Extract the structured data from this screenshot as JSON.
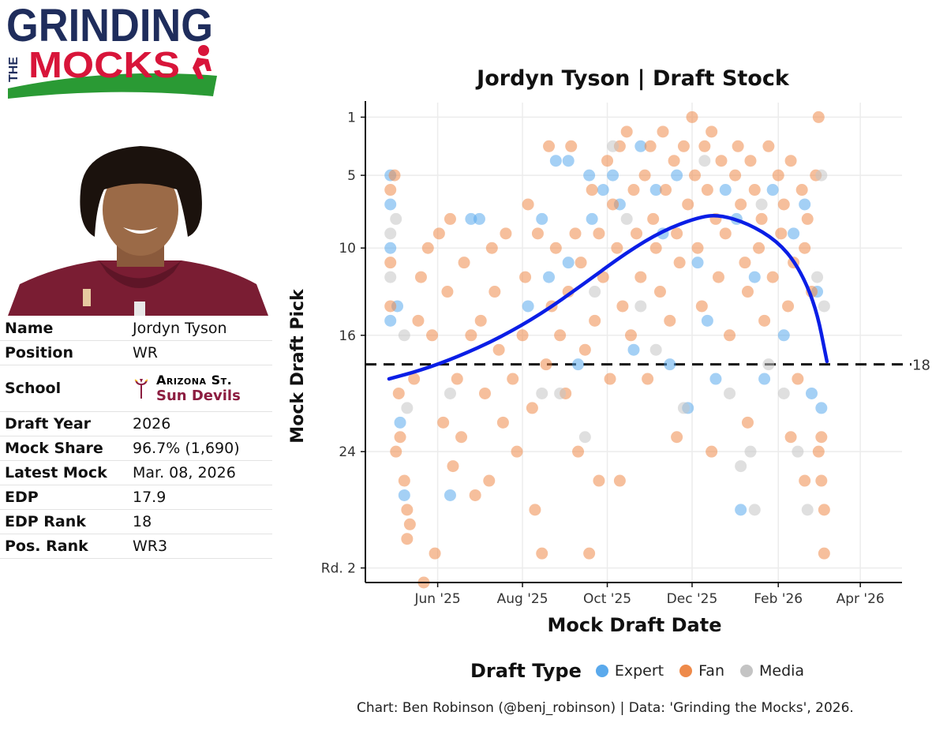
{
  "logo": {
    "line1": "GRINDING",
    "line2": "THE",
    "line3": "MOCKS"
  },
  "player_card": [
    {
      "label": "Name",
      "value": "Jordyn Tyson"
    },
    {
      "label": "Position",
      "value": "WR"
    },
    {
      "label": "School",
      "value": ""
    },
    {
      "label": "Draft Year",
      "value": "2026"
    },
    {
      "label": "Mock Share",
      "value": "96.7% (1,690)"
    },
    {
      "label": "Latest Mock",
      "value": "Mar. 08, 2026"
    },
    {
      "label": "EDP",
      "value": "17.9"
    },
    {
      "label": "EDP Rank",
      "value": "18"
    },
    {
      "label": "Pos. Rank",
      "value": "WR3"
    }
  ],
  "school": {
    "name1": "Arizona St.",
    "name2": "Sun Devils"
  },
  "legend": {
    "title": "Draft Type",
    "items": [
      {
        "label": "Expert",
        "color": "#5aa9ec"
      },
      {
        "label": "Fan",
        "color": "#ee8a4a"
      },
      {
        "label": "Media",
        "color": "#c4c4c4"
      }
    ]
  },
  "caption": "Chart: Ben Robinson (@benj_robinson) | Data: 'Grinding the Mocks', 2026.",
  "chart_data": {
    "type": "scatter",
    "title": "Jordyn Tyson | Draft Stock",
    "xlabel": "Mock Draft Date",
    "ylabel": "Mock Draft Pick",
    "x_type": "date",
    "xlim": [
      "2025-04-10",
      "2026-05-01"
    ],
    "ylim": [
      0,
      33
    ],
    "y_reversed": true,
    "x_ticks": [
      {
        "date": "2025-06-01",
        "label": "Jun '25"
      },
      {
        "date": "2025-08-01",
        "label": "Aug '25"
      },
      {
        "date": "2025-10-01",
        "label": "Oct '25"
      },
      {
        "date": "2025-12-01",
        "label": "Dec '25"
      },
      {
        "date": "2026-02-01",
        "label": "Feb '26"
      },
      {
        "date": "2026-04-01",
        "label": "Apr '26"
      }
    ],
    "y_ticks": [
      {
        "value": 1,
        "label": "1"
      },
      {
        "value": 5,
        "label": "5"
      },
      {
        "value": 10,
        "label": "10"
      },
      {
        "value": 16,
        "label": "16"
      },
      {
        "value": 24,
        "label": "24"
      },
      {
        "value": 32,
        "label": "Rd. 2"
      }
    ],
    "reference_line": {
      "value": 18,
      "label": "18"
    },
    "grid": true,
    "legend_position": "bottom",
    "trend_line": {
      "color": "#0a1ee6",
      "points": [
        [
          "2025-04-27",
          19.0
        ],
        [
          "2025-05-20",
          18.4
        ],
        [
          "2025-06-15",
          17.5
        ],
        [
          "2025-07-15",
          16.2
        ],
        [
          "2025-08-15",
          14.5
        ],
        [
          "2025-09-15",
          12.4
        ],
        [
          "2025-10-15",
          10.3
        ],
        [
          "2025-11-10",
          8.8
        ],
        [
          "2025-12-05",
          7.9
        ],
        [
          "2025-12-20",
          7.7
        ],
        [
          "2026-01-10",
          8.3
        ],
        [
          "2026-01-31",
          9.5
        ],
        [
          "2026-02-15",
          11.2
        ],
        [
          "2026-02-28",
          14.0
        ],
        [
          "2026-03-08",
          17.8
        ]
      ]
    },
    "series": [
      {
        "name": "Expert",
        "color": "#5aa9ec",
        "points": [
          [
            "2025-04-28",
            5
          ],
          [
            "2025-04-28",
            7
          ],
          [
            "2025-04-28",
            10
          ],
          [
            "2025-04-28",
            15
          ],
          [
            "2025-05-03",
            14
          ],
          [
            "2025-05-05",
            22
          ],
          [
            "2025-05-08",
            27
          ],
          [
            "2025-06-10",
            27
          ],
          [
            "2025-06-25",
            8
          ],
          [
            "2025-07-01",
            8
          ],
          [
            "2025-08-05",
            14
          ],
          [
            "2025-08-15",
            8
          ],
          [
            "2025-08-20",
            12
          ],
          [
            "2025-08-25",
            4
          ],
          [
            "2025-09-03",
            4
          ],
          [
            "2025-09-03",
            11
          ],
          [
            "2025-09-10",
            18
          ],
          [
            "2025-09-18",
            5
          ],
          [
            "2025-09-20",
            8
          ],
          [
            "2025-09-28",
            6
          ],
          [
            "2025-10-05",
            5
          ],
          [
            "2025-10-10",
            7
          ],
          [
            "2025-10-20",
            17
          ],
          [
            "2025-10-25",
            3
          ],
          [
            "2025-11-05",
            6
          ],
          [
            "2025-11-10",
            9
          ],
          [
            "2025-11-15",
            18
          ],
          [
            "2025-11-20",
            5
          ],
          [
            "2025-11-28",
            21
          ],
          [
            "2025-12-05",
            11
          ],
          [
            "2025-12-12",
            15
          ],
          [
            "2025-12-18",
            19
          ],
          [
            "2025-12-25",
            6
          ],
          [
            "2026-01-02",
            8
          ],
          [
            "2026-01-05",
            28
          ],
          [
            "2026-01-15",
            12
          ],
          [
            "2026-01-22",
            19
          ],
          [
            "2026-01-28",
            6
          ],
          [
            "2026-02-05",
            16
          ],
          [
            "2026-02-12",
            9
          ],
          [
            "2026-02-20",
            7
          ],
          [
            "2026-02-25",
            20
          ],
          [
            "2026-03-01",
            13
          ],
          [
            "2026-03-04",
            21
          ]
        ]
      },
      {
        "name": "Fan",
        "color": "#ee8a4a",
        "points": [
          [
            "2025-04-28",
            6
          ],
          [
            "2025-04-28",
            11
          ],
          [
            "2025-04-28",
            14
          ],
          [
            "2025-05-01",
            5
          ],
          [
            "2025-05-02",
            24
          ],
          [
            "2025-05-04",
            20
          ],
          [
            "2025-05-05",
            23
          ],
          [
            "2025-05-08",
            26
          ],
          [
            "2025-05-10",
            28
          ],
          [
            "2025-05-10",
            30
          ],
          [
            "2025-05-12",
            29
          ],
          [
            "2025-05-15",
            19
          ],
          [
            "2025-05-18",
            15
          ],
          [
            "2025-05-20",
            12
          ],
          [
            "2025-05-22",
            33
          ],
          [
            "2025-05-25",
            10
          ],
          [
            "2025-05-28",
            16
          ],
          [
            "2025-05-30",
            31
          ],
          [
            "2025-06-02",
            9
          ],
          [
            "2025-06-05",
            22
          ],
          [
            "2025-06-08",
            13
          ],
          [
            "2025-06-10",
            8
          ],
          [
            "2025-06-12",
            25
          ],
          [
            "2025-06-15",
            19
          ],
          [
            "2025-06-18",
            23
          ],
          [
            "2025-06-20",
            11
          ],
          [
            "2025-06-25",
            16
          ],
          [
            "2025-06-28",
            27
          ],
          [
            "2025-07-02",
            15
          ],
          [
            "2025-07-05",
            20
          ],
          [
            "2025-07-08",
            26
          ],
          [
            "2025-07-10",
            10
          ],
          [
            "2025-07-12",
            13
          ],
          [
            "2025-07-15",
            17
          ],
          [
            "2025-07-18",
            22
          ],
          [
            "2025-07-20",
            9
          ],
          [
            "2025-07-25",
            19
          ],
          [
            "2025-07-28",
            24
          ],
          [
            "2025-08-01",
            16
          ],
          [
            "2025-08-03",
            12
          ],
          [
            "2025-08-05",
            7
          ],
          [
            "2025-08-08",
            21
          ],
          [
            "2025-08-10",
            28
          ],
          [
            "2025-08-12",
            9
          ],
          [
            "2025-08-15",
            31
          ],
          [
            "2025-08-18",
            18
          ],
          [
            "2025-08-20",
            3
          ],
          [
            "2025-08-22",
            14
          ],
          [
            "2025-08-25",
            10
          ],
          [
            "2025-08-28",
            16
          ],
          [
            "2025-09-01",
            20
          ],
          [
            "2025-09-03",
            13
          ],
          [
            "2025-09-05",
            3
          ],
          [
            "2025-09-08",
            9
          ],
          [
            "2025-09-10",
            24
          ],
          [
            "2025-09-12",
            11
          ],
          [
            "2025-09-15",
            17
          ],
          [
            "2025-09-18",
            31
          ],
          [
            "2025-09-20",
            6
          ],
          [
            "2025-09-22",
            15
          ],
          [
            "2025-09-25",
            9
          ],
          [
            "2025-09-28",
            12
          ],
          [
            "2025-10-01",
            4
          ],
          [
            "2025-10-03",
            19
          ],
          [
            "2025-10-05",
            7
          ],
          [
            "2025-10-08",
            10
          ],
          [
            "2025-10-10",
            3
          ],
          [
            "2025-10-12",
            14
          ],
          [
            "2025-10-15",
            2
          ],
          [
            "2025-10-18",
            16
          ],
          [
            "2025-10-20",
            6
          ],
          [
            "2025-10-22",
            9
          ],
          [
            "2025-10-25",
            12
          ],
          [
            "2025-10-28",
            5
          ],
          [
            "2025-10-30",
            19
          ],
          [
            "2025-11-01",
            3
          ],
          [
            "2025-11-03",
            8
          ],
          [
            "2025-11-05",
            10
          ],
          [
            "2025-11-08",
            13
          ],
          [
            "2025-11-10",
            2
          ],
          [
            "2025-11-12",
            6
          ],
          [
            "2025-11-15",
            15
          ],
          [
            "2025-11-18",
            4
          ],
          [
            "2025-11-20",
            9
          ],
          [
            "2025-11-22",
            11
          ],
          [
            "2025-11-25",
            3
          ],
          [
            "2025-11-28",
            7
          ],
          [
            "2025-12-01",
            1
          ],
          [
            "2025-12-03",
            5
          ],
          [
            "2025-12-05",
            10
          ],
          [
            "2025-12-08",
            14
          ],
          [
            "2025-12-10",
            3
          ],
          [
            "2025-12-12",
            6
          ],
          [
            "2025-12-15",
            2
          ],
          [
            "2025-12-18",
            8
          ],
          [
            "2025-12-20",
            12
          ],
          [
            "2025-12-22",
            4
          ],
          [
            "2025-12-25",
            9
          ],
          [
            "2025-12-28",
            16
          ],
          [
            "2026-01-01",
            5
          ],
          [
            "2026-01-03",
            3
          ],
          [
            "2026-01-05",
            7
          ],
          [
            "2026-01-08",
            11
          ],
          [
            "2026-01-10",
            13
          ],
          [
            "2026-01-12",
            4
          ],
          [
            "2026-01-15",
            6
          ],
          [
            "2026-01-18",
            10
          ],
          [
            "2026-01-20",
            8
          ],
          [
            "2026-01-22",
            15
          ],
          [
            "2026-01-25",
            3
          ],
          [
            "2026-01-28",
            12
          ],
          [
            "2026-02-01",
            5
          ],
          [
            "2026-02-03",
            9
          ],
          [
            "2026-02-05",
            7
          ],
          [
            "2026-02-08",
            14
          ],
          [
            "2026-02-10",
            4
          ],
          [
            "2026-02-12",
            11
          ],
          [
            "2026-02-15",
            19
          ],
          [
            "2026-02-18",
            6
          ],
          [
            "2026-02-20",
            10
          ],
          [
            "2026-02-22",
            8
          ],
          [
            "2026-02-25",
            13
          ],
          [
            "2026-02-28",
            5
          ],
          [
            "2026-03-02",
            1
          ],
          [
            "2026-03-02",
            24
          ],
          [
            "2026-03-04",
            23
          ],
          [
            "2026-03-04",
            26
          ],
          [
            "2026-03-06",
            31
          ],
          [
            "2026-03-06",
            28
          ],
          [
            "2026-01-10",
            22
          ],
          [
            "2025-12-15",
            24
          ],
          [
            "2025-11-20",
            23
          ],
          [
            "2025-10-10",
            26
          ],
          [
            "2025-09-25",
            26
          ],
          [
            "2026-02-20",
            26
          ],
          [
            "2026-02-10",
            23
          ]
        ]
      },
      {
        "name": "Media",
        "color": "#c4c4c4",
        "points": [
          [
            "2025-04-28",
            9
          ],
          [
            "2025-04-28",
            12
          ],
          [
            "2025-05-02",
            8
          ],
          [
            "2025-05-08",
            16
          ],
          [
            "2025-05-10",
            21
          ],
          [
            "2025-06-10",
            20
          ],
          [
            "2025-08-15",
            20
          ],
          [
            "2025-08-28",
            20
          ],
          [
            "2025-09-15",
            23
          ],
          [
            "2025-09-22",
            13
          ],
          [
            "2025-10-05",
            3
          ],
          [
            "2025-10-15",
            8
          ],
          [
            "2025-10-25",
            14
          ],
          [
            "2025-11-05",
            17
          ],
          [
            "2025-11-25",
            21
          ],
          [
            "2025-12-10",
            4
          ],
          [
            "2025-12-28",
            20
          ],
          [
            "2026-01-05",
            25
          ],
          [
            "2026-01-12",
            24
          ],
          [
            "2026-01-15",
            28
          ],
          [
            "2026-01-20",
            7
          ],
          [
            "2026-01-25",
            18
          ],
          [
            "2026-02-05",
            20
          ],
          [
            "2026-02-15",
            24
          ],
          [
            "2026-02-22",
            28
          ],
          [
            "2026-03-01",
            12
          ],
          [
            "2026-03-04",
            5
          ],
          [
            "2026-03-06",
            14
          ]
        ]
      }
    ]
  }
}
